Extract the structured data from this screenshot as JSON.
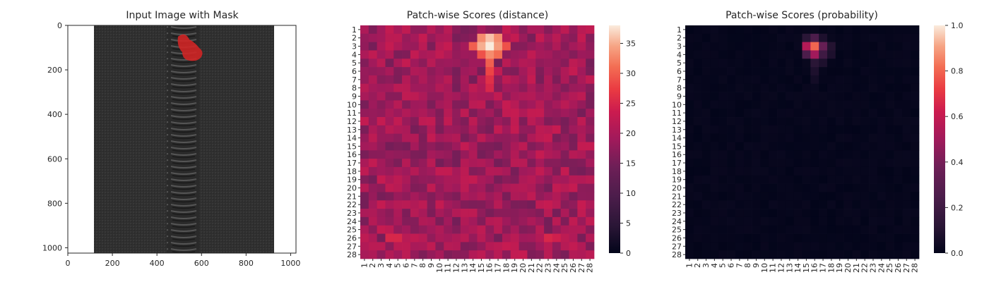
{
  "panels": {
    "image": {
      "title": "Input Image with Mask",
      "x_ticks": [
        "0",
        "200",
        "400",
        "600",
        "800",
        "1000"
      ],
      "y_ticks": [
        "0",
        "200",
        "400",
        "600",
        "800",
        "1000"
      ]
    },
    "distance": {
      "title": "Patch-wise Scores (distance)",
      "colorbar_ticks": [
        "0",
        "5",
        "10",
        "15",
        "20",
        "25",
        "30",
        "35"
      ]
    },
    "probability": {
      "title": "Patch-wise Scores (probability)",
      "colorbar_ticks": [
        "0.0",
        "0.2",
        "0.4",
        "0.6",
        "0.8",
        "1.0"
      ]
    }
  },
  "chart_data": [
    {
      "type": "image",
      "title": "Input Image with Mask",
      "xlim": [
        0,
        1024
      ],
      "ylim": [
        1024,
        0
      ],
      "content": "black zipper on white background, red defect mask near the top of the teeth",
      "mask_center": [
        540,
        100
      ]
    },
    {
      "type": "heatmap",
      "title": "Patch-wise Scores (distance)",
      "rows": 28,
      "cols": 28,
      "x_categories": [
        1,
        2,
        3,
        4,
        5,
        6,
        7,
        8,
        9,
        10,
        11,
        12,
        13,
        14,
        15,
        16,
        17,
        18,
        19,
        20,
        21,
        22,
        23,
        24,
        25,
        26,
        27,
        28
      ],
      "y_categories": [
        1,
        2,
        3,
        4,
        5,
        6,
        7,
        8,
        9,
        10,
        11,
        12,
        13,
        14,
        15,
        16,
        17,
        18,
        19,
        20,
        21,
        22,
        23,
        24,
        25,
        26,
        27,
        28
      ],
      "colormap": "rocket",
      "vmin": 0,
      "vmax": 38,
      "background": 19,
      "hotspots": [
        {
          "row": 2,
          "col": 16,
          "value": 36
        },
        {
          "row": 2,
          "col": 15,
          "value": 33
        },
        {
          "row": 2,
          "col": 17,
          "value": 33
        },
        {
          "row": 3,
          "col": 16,
          "value": 38
        },
        {
          "row": 3,
          "col": 15,
          "value": 35
        },
        {
          "row": 3,
          "col": 17,
          "value": 34
        },
        {
          "row": 3,
          "col": 14,
          "value": 30
        },
        {
          "row": 3,
          "col": 18,
          "value": 29
        },
        {
          "row": 4,
          "col": 16,
          "value": 33
        },
        {
          "row": 4,
          "col": 17,
          "value": 31
        },
        {
          "row": 4,
          "col": 15,
          "value": 29
        },
        {
          "row": 5,
          "col": 16,
          "value": 30
        },
        {
          "row": 6,
          "col": 16,
          "value": 28
        },
        {
          "row": 7,
          "col": 16,
          "value": 26
        },
        {
          "row": 8,
          "col": 16,
          "value": 25
        },
        {
          "row": 26,
          "col": 4,
          "value": 25
        },
        {
          "row": 26,
          "col": 5,
          "value": 25
        },
        {
          "row": 26,
          "col": 23,
          "value": 25
        },
        {
          "row": 26,
          "col": 24,
          "value": 24
        }
      ]
    },
    {
      "type": "heatmap",
      "title": "Patch-wise Scores (probability)",
      "rows": 28,
      "cols": 28,
      "x_categories": [
        1,
        2,
        3,
        4,
        5,
        6,
        7,
        8,
        9,
        10,
        11,
        12,
        13,
        14,
        15,
        16,
        17,
        18,
        19,
        20,
        21,
        22,
        23,
        24,
        25,
        26,
        27,
        28
      ],
      "y_categories": [
        1,
        2,
        3,
        4,
        5,
        6,
        7,
        8,
        9,
        10,
        11,
        12,
        13,
        14,
        15,
        16,
        17,
        18,
        19,
        20,
        21,
        22,
        23,
        24,
        25,
        26,
        27,
        28
      ],
      "colormap": "rocket",
      "vmin": 0.0,
      "vmax": 1.0,
      "background": 0.0,
      "hotspots": [
        {
          "row": 2,
          "col": 16,
          "value": 0.25
        },
        {
          "row": 2,
          "col": 15,
          "value": 0.12
        },
        {
          "row": 2,
          "col": 17,
          "value": 0.08
        },
        {
          "row": 3,
          "col": 15,
          "value": 0.55
        },
        {
          "row": 3,
          "col": 16,
          "value": 0.8
        },
        {
          "row": 3,
          "col": 17,
          "value": 0.35
        },
        {
          "row": 3,
          "col": 18,
          "value": 0.1
        },
        {
          "row": 4,
          "col": 15,
          "value": 0.25
        },
        {
          "row": 4,
          "col": 16,
          "value": 0.5
        },
        {
          "row": 4,
          "col": 17,
          "value": 0.2
        },
        {
          "row": 4,
          "col": 18,
          "value": 0.08
        },
        {
          "row": 5,
          "col": 16,
          "value": 0.12
        },
        {
          "row": 5,
          "col": 17,
          "value": 0.08
        },
        {
          "row": 6,
          "col": 16,
          "value": 0.08
        },
        {
          "row": 7,
          "col": 16,
          "value": 0.05
        }
      ]
    }
  ]
}
